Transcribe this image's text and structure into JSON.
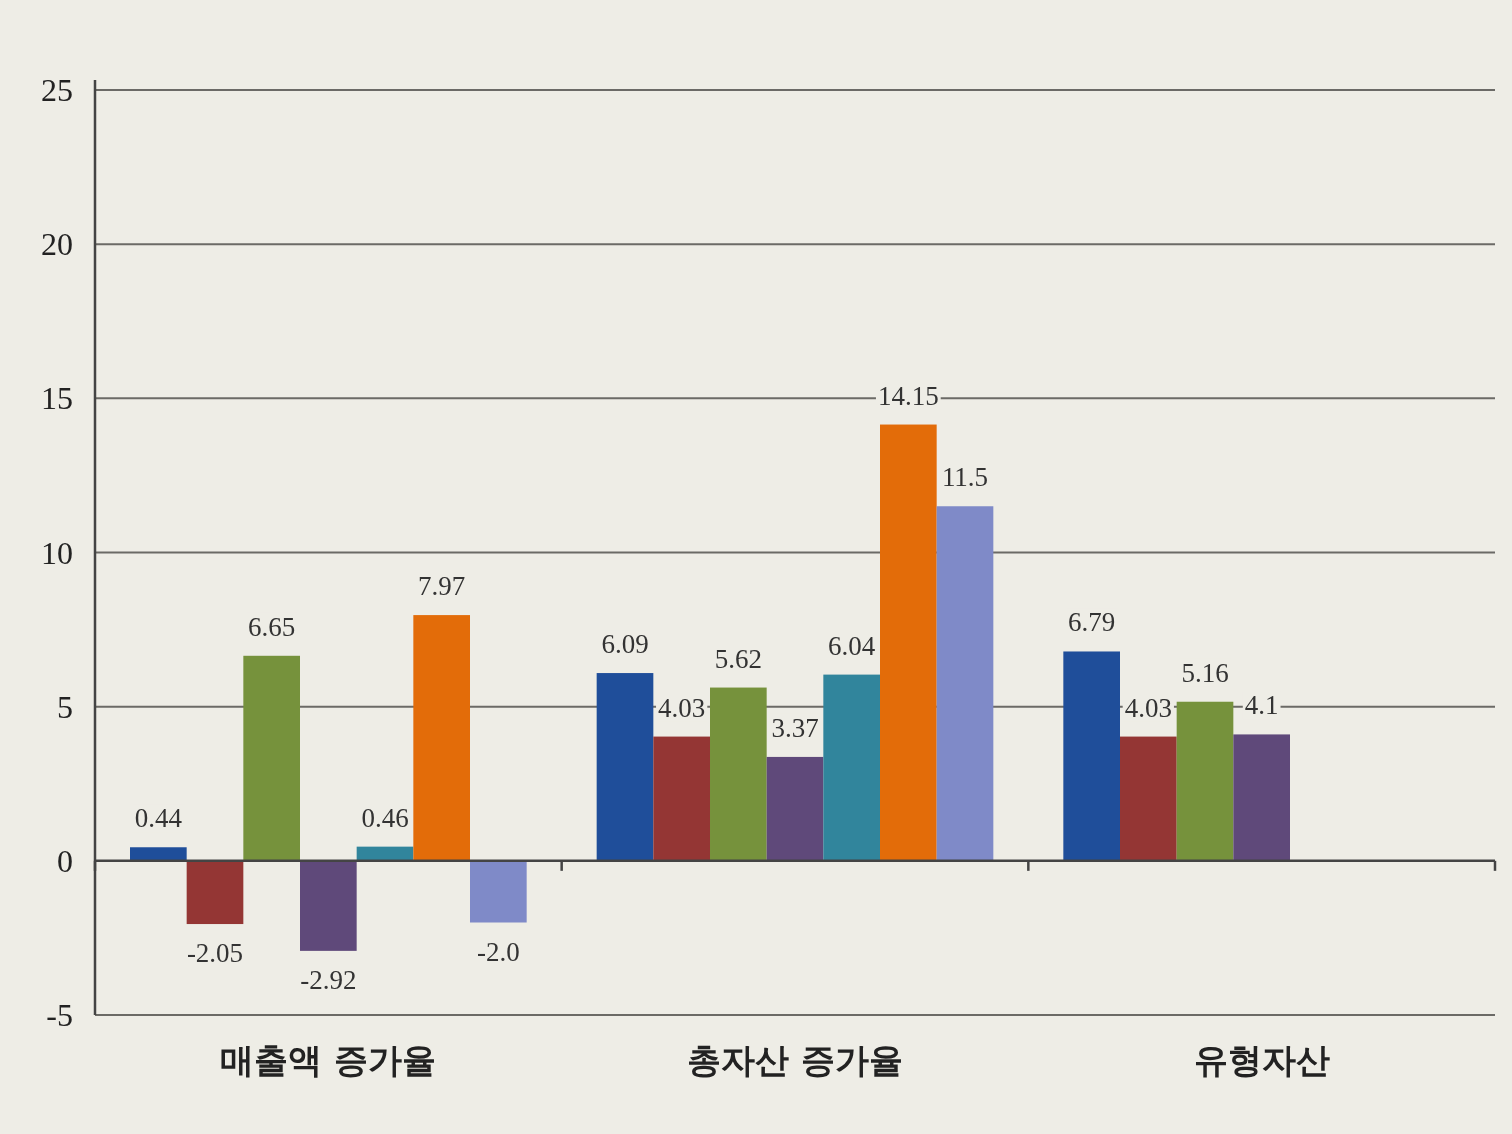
{
  "chart_data": {
    "type": "bar",
    "categories": [
      "매출액 증가율",
      "총자산 증가율",
      "유형자산"
    ],
    "series": [
      {
        "color": "#1f4e9a",
        "values": [
          0.44,
          6.09,
          6.79
        ],
        "value_labels": [
          "0.44",
          "6.09",
          "6.79"
        ]
      },
      {
        "color": "#943634",
        "values": [
          -2.05,
          4.03,
          4.03
        ],
        "value_labels": [
          "-2.05",
          "4.03",
          "4.03"
        ]
      },
      {
        "color": "#76923c",
        "values": [
          6.65,
          5.62,
          5.16
        ],
        "value_labels": [
          "6.65",
          "5.62",
          "5.16"
        ]
      },
      {
        "color": "#5f497a",
        "values": [
          -2.92,
          3.37,
          4.1
        ],
        "value_labels": [
          "-2.92",
          "3.37",
          "4.1"
        ]
      },
      {
        "color": "#31859c",
        "values": [
          0.46,
          6.04,
          null
        ],
        "value_labels": [
          "0.46",
          "6.04",
          null
        ]
      },
      {
        "color": "#e36c09",
        "values": [
          7.97,
          14.15,
          null
        ],
        "value_labels": [
          "7.97",
          "14.15",
          null
        ]
      },
      {
        "color": "#7f8ac8",
        "values": [
          -2.0,
          11.5,
          null
        ],
        "value_labels": [
          "-2.0",
          "11.5",
          null
        ]
      }
    ],
    "ylim": [
      -5,
      25
    ],
    "yticks": [
      -5,
      0,
      5,
      10,
      15,
      20,
      25
    ],
    "grid": "y"
  }
}
